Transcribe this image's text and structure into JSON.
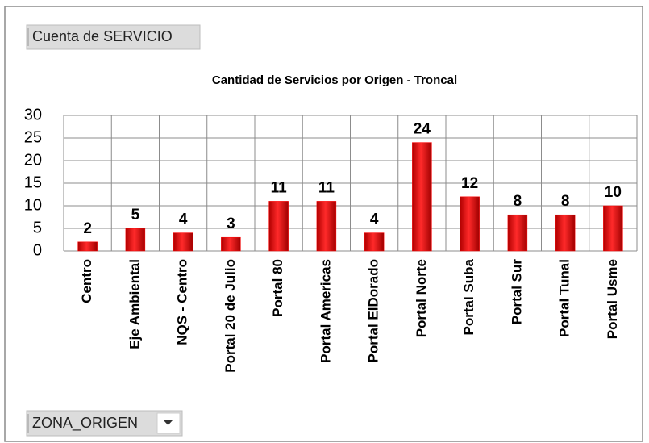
{
  "field_buttons": {
    "value": "Cuenta de SERVICIO",
    "filter": "ZONA_ORIGEN"
  },
  "chart_data": {
    "type": "bar",
    "title": "Cantidad de Servicios por Origen - Troncal",
    "categories": [
      "Centro",
      "Eje Ambiental",
      "NQS - Centro",
      "Portal 20 de Julio",
      "Portal 80",
      "Portal Americas",
      "Portal ElDorado",
      "Portal Norte",
      "Portal Suba",
      "Portal Sur",
      "Portal Tunal",
      "Portal Usme"
    ],
    "values": [
      2,
      5,
      4,
      3,
      11,
      11,
      4,
      24,
      12,
      8,
      8,
      10
    ],
    "color": "#ff0000",
    "ylim": [
      0,
      30
    ],
    "yticks": [
      0,
      5,
      10,
      15,
      20,
      25,
      30
    ],
    "grid": true
  }
}
